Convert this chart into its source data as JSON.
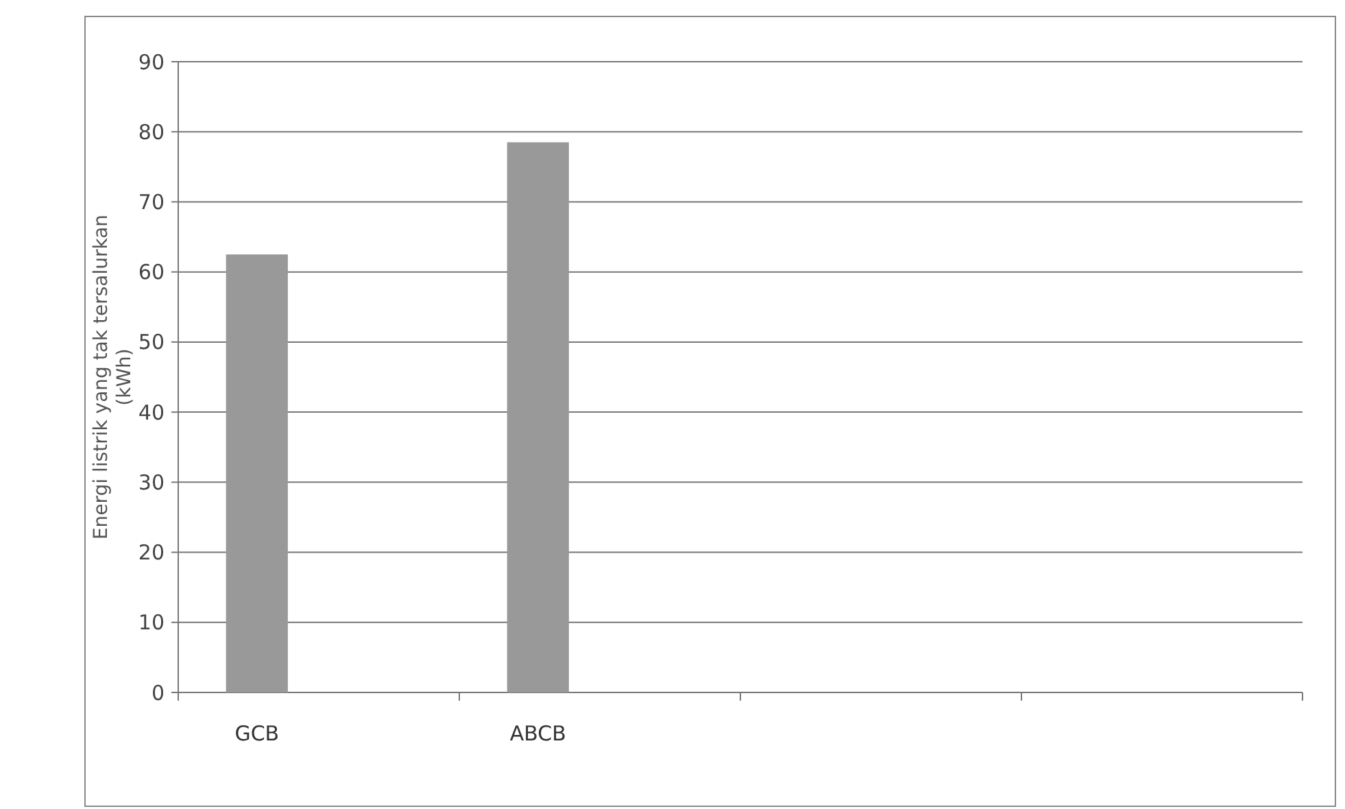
{
  "chart_data": {
    "type": "bar",
    "ylabel": "Energi listrik yang tak tersalurkan (kWh)",
    "categories": [
      "GCB",
      "ABCB",
      null,
      null
    ],
    "values": [
      62.5,
      78.5,
      null,
      null
    ],
    "color": "#999999",
    "ylim": [
      0,
      90
    ],
    "yticks": [
      0,
      10,
      20,
      30,
      40,
      50,
      60,
      70,
      80,
      90
    ],
    "grid": "y"
  }
}
